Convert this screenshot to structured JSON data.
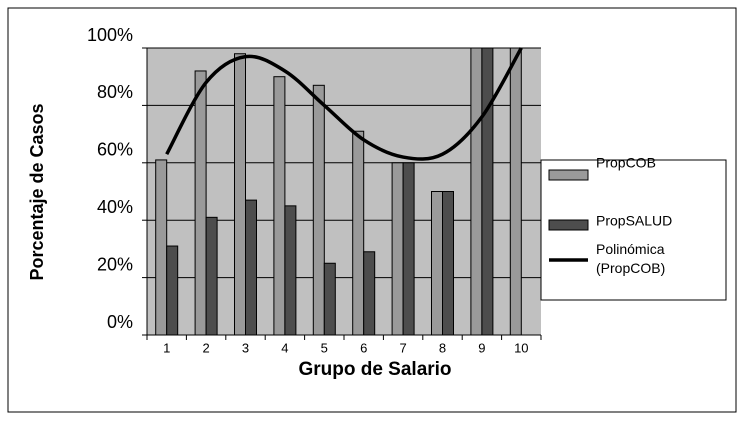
{
  "chart_data": {
    "type": "bar",
    "x_label": "Grupo de Salario",
    "y_label": "Porcentaje de Casos",
    "categories": [
      "1",
      "2",
      "3",
      "4",
      "5",
      "6",
      "7",
      "8",
      "9",
      "10"
    ],
    "series": [
      {
        "name": "PropCOB",
        "color": "#9a9a9a",
        "values": [
          61,
          92,
          98,
          90,
          87,
          71,
          60,
          50,
          100,
          100
        ]
      },
      {
        "name": "PropSALUD",
        "color": "#4d4d4d",
        "values": [
          31,
          41,
          47,
          45,
          25,
          29,
          60,
          50,
          100,
          0
        ]
      },
      {
        "name": "Polinómica (PropCOB)",
        "type": "line",
        "color": "#000000",
        "values": [
          63,
          88,
          97,
          92,
          80,
          68,
          62,
          63,
          76,
          100
        ]
      }
    ],
    "ylim": [
      0,
      100
    ],
    "yticks": [
      {
        "value": 0,
        "label": "0%"
      },
      {
        "value": 20,
        "label": "20%"
      },
      {
        "value": 40,
        "label": "40%"
      },
      {
        "value": 60,
        "label": "60%"
      },
      {
        "value": 80,
        "label": "80%"
      },
      {
        "value": 100,
        "label": "100%"
      }
    ],
    "grid": true,
    "legend": "right",
    "plot_background": "#c0c0c0"
  }
}
